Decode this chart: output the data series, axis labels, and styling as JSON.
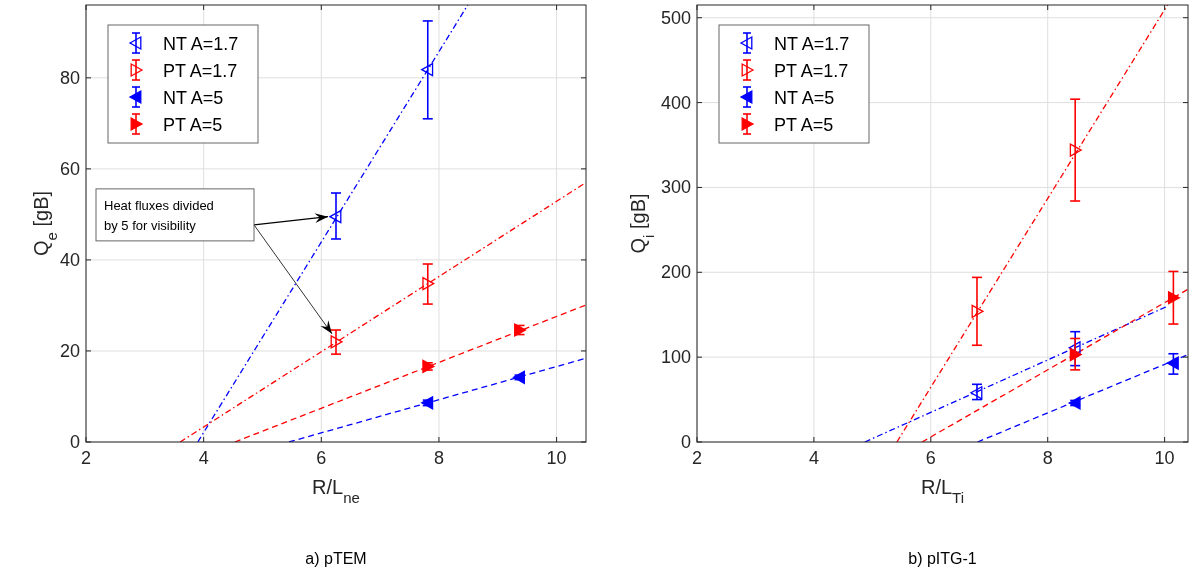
{
  "chart_data": [
    {
      "type": "scatter",
      "xlabel": "R/L$_{ne}$",
      "ylabel": "Q$_{e}$ [gB]",
      "xlim": [
        2,
        10.5
      ],
      "ylim": [
        0,
        96
      ],
      "xticks": [
        2,
        4,
        6,
        8,
        10
      ],
      "yticks": [
        0,
        20,
        40,
        60,
        80
      ],
      "grid": true,
      "legend": "top left",
      "annotations": [
        "Heat fluxes divided by 5 for visibility",
        "a) pTEM"
      ],
      "series": [
        {
          "name": "NT A=1.7",
          "color": "#0000ff",
          "marker": "triangle-left-open",
          "x": [
            6.25,
            7.81
          ],
          "values": [
            49.5,
            81.8
          ],
          "errors": [
            [
              44.6,
              54.7
            ],
            [
              71,
              92.5
            ]
          ]
        },
        {
          "name": "PT A=1.7",
          "color": "#ff0000",
          "marker": "triangle-right-open",
          "x": [
            6.25,
            7.81
          ],
          "values": [
            22,
            34.8
          ],
          "errors": [
            [
              19.3,
              24.6
            ],
            [
              30.3,
              39.1
            ]
          ]
        },
        {
          "name": "NT A=5",
          "color": "#0000ff",
          "marker": "triangle-left",
          "x": [
            7.81,
            9.37
          ],
          "values": [
            8.6,
            14.2
          ],
          "errors": [
            [
              8,
              9.2
            ],
            [
              13.7,
              14.7
            ]
          ]
        },
        {
          "name": "PT A=5",
          "color": "#ff0000",
          "marker": "triangle-right",
          "x": [
            7.81,
            9.37
          ],
          "values": [
            16.6,
            24.6
          ],
          "errors": [
            [
              15.8,
              17.4
            ],
            [
              23.6,
              25.6
            ]
          ]
        },
        {
          "type": "line",
          "color": "#0000ff",
          "line_style": "dashdot",
          "x": [
            3.9,
            8.49
          ],
          "values": [
            0,
            96
          ]
        },
        {
          "type": "line",
          "color": "#ff0000",
          "line_style": "dashdot",
          "x": [
            3.6,
            10.5
          ],
          "values": [
            0,
            57
          ]
        },
        {
          "type": "line",
          "color": "#0000ff",
          "line_style": "dashed",
          "x": [
            5.45,
            10.5
          ],
          "values": [
            0,
            18.4
          ]
        },
        {
          "type": "line",
          "color": "#ff0000",
          "line_style": "dashed",
          "x": [
            4.53,
            10.5
          ],
          "values": [
            0,
            30.1
          ]
        }
      ]
    },
    {
      "type": "scatter",
      "xlabel": "R/L$_{Ti}$",
      "ylabel": "Q$_{i}$ [gB]",
      "xlim": [
        2,
        10.4
      ],
      "ylim": [
        0,
        515
      ],
      "xticks": [
        2,
        4,
        6,
        8,
        10
      ],
      "yticks": [
        0,
        100,
        200,
        300,
        400,
        500
      ],
      "grid": true,
      "legend": "top left",
      "annotations": [
        "b) pITG-1"
      ],
      "series": [
        {
          "name": "NT A=1.7",
          "color": "#0000ff",
          "marker": "triangle-left-open",
          "x": [
            6.79,
            8.47
          ],
          "values": [
            58,
            111
          ],
          "errors": [
            [
              50,
              68
            ],
            [
              90,
              130
            ]
          ]
        },
        {
          "name": "PT A=1.7",
          "color": "#ff0000",
          "marker": "triangle-right-open",
          "x": [
            6.79,
            8.47
          ],
          "values": [
            154,
            344
          ],
          "errors": [
            [
              114,
              194
            ],
            [
              284,
              404
            ]
          ]
        },
        {
          "name": "NT A=5",
          "color": "#0000ff",
          "marker": "triangle-left",
          "x": [
            8.47,
            10.15
          ],
          "values": [
            46,
            93
          ],
          "errors": [
            [
              43,
              49
            ],
            [
              80,
              104
            ]
          ]
        },
        {
          "name": "PT A=5",
          "color": "#ff0000",
          "marker": "triangle-right",
          "x": [
            8.47,
            10.15
          ],
          "values": [
            103,
            170
          ],
          "errors": [
            [
              85,
              122
            ],
            [
              139,
              201
            ]
          ]
        },
        {
          "type": "line",
          "color": "#0000ff",
          "line_style": "dashdot",
          "x": [
            4.87,
            10.05
          ],
          "values": [
            0,
            160
          ]
        },
        {
          "type": "line",
          "color": "#ff0000",
          "line_style": "dashdot",
          "x": [
            5.42,
            10.05
          ],
          "values": [
            0,
            515
          ]
        },
        {
          "type": "line",
          "color": "#0000ff",
          "line_style": "dashed",
          "x": [
            6.8,
            10.4
          ],
          "values": [
            0,
            103
          ]
        },
        {
          "type": "line",
          "color": "#ff0000",
          "line_style": "dashed",
          "x": [
            5.85,
            10.4
          ],
          "values": [
            0,
            180
          ]
        }
      ]
    }
  ]
}
